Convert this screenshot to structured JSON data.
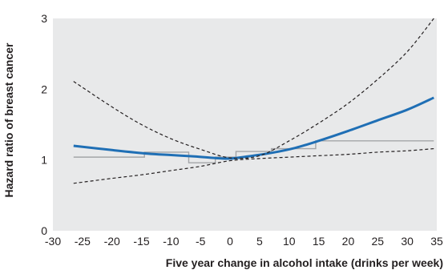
{
  "chart_data": {
    "type": "line",
    "xlabel": "Five year change in alcohol intake (drinks per week)",
    "ylabel": "Hazard ratio of breast cancer",
    "xlim": [
      -30,
      35
    ],
    "ylim": [
      0,
      3
    ],
    "xticks": [
      "-30",
      "-25",
      "-20",
      "-15",
      "-10",
      "-5",
      "0",
      "5",
      "10",
      "15",
      "20",
      "25",
      "30",
      "35"
    ],
    "yticks": [
      "0",
      "1",
      "2",
      "3"
    ],
    "grid": false,
    "plot_background": "#e8e9ea",
    "series": [
      {
        "style": "solid",
        "color": "#1f6fb5",
        "x": [
          -26.5,
          -20,
          -14,
          -10,
          -6,
          -3,
          0,
          3,
          7,
          11,
          15,
          20,
          25,
          30,
          34.5
        ],
        "y": [
          1.2,
          1.14,
          1.09,
          1.07,
          1.05,
          1.03,
          1.02,
          1.05,
          1.1,
          1.17,
          1.27,
          1.41,
          1.56,
          1.71,
          1.88
        ]
      },
      {
        "style": "dashed",
        "color": "#231f20",
        "x": [
          -26.5,
          -20,
          -15,
          -10,
          -5,
          0,
          5,
          10,
          15,
          20,
          25,
          30,
          34.5
        ],
        "y": [
          2.11,
          1.75,
          1.5,
          1.3,
          1.15,
          1.03,
          1.06,
          1.27,
          1.52,
          1.8,
          2.14,
          2.53,
          3.0
        ]
      },
      {
        "style": "dashed",
        "color": "#231f20",
        "x": [
          -26.5,
          -20,
          -15,
          -10,
          -5,
          0,
          5,
          10,
          15,
          20,
          25,
          30,
          34.5
        ],
        "y": [
          0.67,
          0.74,
          0.79,
          0.85,
          0.91,
          0.99,
          1.02,
          1.04,
          1.06,
          1.08,
          1.11,
          1.13,
          1.16
        ]
      },
      {
        "style": "step",
        "color": "#a3a5a8",
        "segments": [
          {
            "x0": -26.5,
            "x1": -14.5,
            "y": 1.04
          },
          {
            "x0": -14.5,
            "x1": -7,
            "y": 1.11
          },
          {
            "x0": -7,
            "x1": -2.5,
            "y": 0.96
          },
          {
            "x0": -2.5,
            "x1": 1,
            "y": 1.04
          },
          {
            "x0": 1,
            "x1": 7,
            "y": 1.12
          },
          {
            "x0": 7,
            "x1": 14.5,
            "y": 1.16
          },
          {
            "x0": 14.5,
            "x1": 34.5,
            "y": 1.27
          }
        ]
      }
    ]
  }
}
